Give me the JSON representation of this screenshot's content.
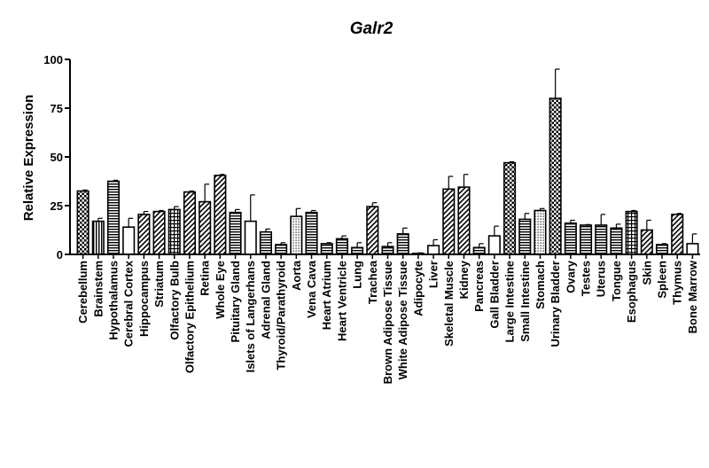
{
  "chart_data": {
    "type": "bar",
    "title": "Galr2",
    "xlabel": "",
    "ylabel": "Relative Expression",
    "ylim": [
      0,
      100
    ],
    "yticks": [
      0,
      25,
      50,
      75,
      100
    ],
    "grid": false,
    "legend": "none",
    "categories": [
      "Cerebellum",
      "Brainstem",
      "Hypothalamus",
      "Cerebral Cortex",
      "Hippocampus",
      "Striatum",
      "Olfactory Bulb",
      "Olfactory Epithelium",
      "Retina",
      "Whole Eye",
      "Pituitary Gland",
      "Islets of Langerhans",
      "Adrenal Gland",
      "Thyroid/Parathyroid",
      "Aorta",
      "Vena Cava",
      "Heart Atrium",
      "Heart Ventricle",
      "Lung",
      "Trachea",
      "Brown Adipose Tissue",
      "White Adipose Tissue",
      "Adipocyte",
      "Liver",
      "Skeletal Muscle",
      "Kidney",
      "Pancreas",
      "Gall Bladder",
      "Large Intestine",
      "Small Intestine",
      "Stomach",
      "Urinary Bladder",
      "Ovary",
      "Testes",
      "Uterus",
      "Tongue",
      "Esophagus",
      "Skin",
      "Spleen",
      "Thymus",
      "Bone Marrow"
    ],
    "values": [
      32.5,
      17,
      37.5,
      14,
      20.5,
      22,
      23,
      32,
      27,
      40.5,
      21.5,
      17,
      11.5,
      5,
      19.5,
      21.5,
      5.5,
      8,
      3.5,
      24.5,
      4,
      10.5,
      0.5,
      4.5,
      33.5,
      34.5,
      3.5,
      9.5,
      47,
      18,
      22.5,
      80,
      16,
      15,
      15,
      13.5,
      22,
      12.5,
      5,
      20.5,
      5.5
    ],
    "errors": [
      0.5,
      1.5,
      0.5,
      4.5,
      1.5,
      0.5,
      1.5,
      0.5,
      9,
      0.5,
      1.5,
      13.5,
      1.5,
      1,
      4,
      1,
      0.5,
      1.5,
      2.5,
      2,
      2,
      3,
      0.3,
      3,
      6.5,
      6.5,
      2,
      5,
      0.5,
      3,
      1,
      15,
      1.5,
      0.3,
      5.5,
      2,
      0.5,
      5,
      0.5,
      0.5,
      5
    ],
    "patterns": [
      "check",
      "vstripe",
      "hstripe",
      "plain",
      "diag",
      "diag",
      "grid",
      "diag",
      "diag",
      "diag",
      "hstripe",
      "plain",
      "hstripe",
      "hstripe",
      "dots",
      "hstripe",
      "hstripe",
      "hstripe",
      "hstripe",
      "diag",
      "hstripe",
      "hstripe",
      "plain",
      "plain",
      "diag",
      "diag",
      "hstripe",
      "plain",
      "check",
      "hstripe",
      "dots",
      "check",
      "hstripe",
      "hstripe",
      "hstripe",
      "hstripe",
      "grid",
      "diag",
      "hstripe",
      "diag",
      "plain"
    ]
  }
}
